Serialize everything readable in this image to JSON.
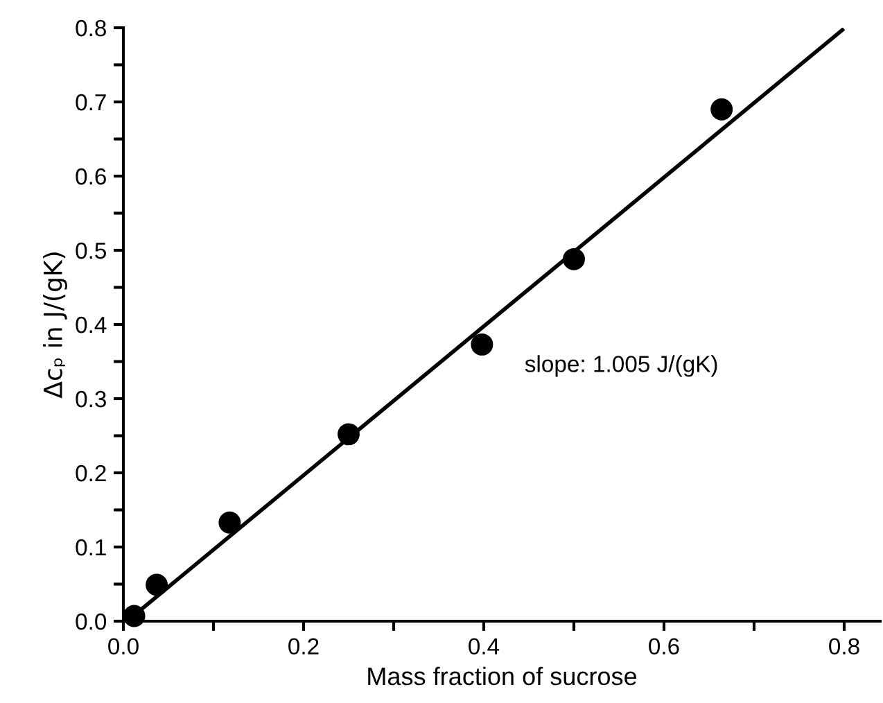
{
  "chart_data": {
    "type": "scatter",
    "xlabel": "Mass fraction of sucrose",
    "ylabel": "Δcₚ in J/(gK)",
    "annotations": [
      "slope: 1.005 J/(gK)"
    ],
    "xlim": [
      0,
      0.84
    ],
    "ylim": [
      0,
      0.8
    ],
    "xticks": [
      {
        "value": 0.0,
        "label": "0.0"
      },
      {
        "value": 0.1,
        "label": null
      },
      0.2,
      {
        "value": 0.3,
        "label": null
      },
      0.4,
      {
        "value": 0.5,
        "label": null
      },
      0.6,
      {
        "value": 0.7,
        "label": null
      },
      0.8
    ],
    "yticks": [
      {
        "value": 0.0,
        "label": "0.0"
      },
      {
        "value": 0.05,
        "label": null
      },
      0.1,
      {
        "value": 0.15,
        "label": null
      },
      0.2,
      {
        "value": 0.25,
        "label": null
      },
      0.3,
      {
        "value": 0.35,
        "label": null
      },
      0.4,
      {
        "value": 0.45,
        "label": null
      },
      0.5,
      {
        "value": 0.55,
        "label": null
      },
      0.6,
      {
        "value": 0.65,
        "label": null
      },
      0.7,
      {
        "value": 0.75,
        "label": null
      },
      0.8
    ],
    "grid": false,
    "legend": false,
    "marker": "circle",
    "series": [
      {
        "color": "#000000",
        "x": [
          0.012,
          0.037,
          0.118,
          0.25,
          0.398,
          0.5,
          0.664
        ],
        "values": [
          0.007,
          0.049,
          0.133,
          0.252,
          0.373,
          0.488,
          0.69
        ]
      },
      {
        "type": "line",
        "color": "#000000",
        "marker": "none",
        "line_style": "solid",
        "x": [
          0.004,
          0.798
        ],
        "values": [
          0.0,
          0.797
        ]
      }
    ]
  }
}
